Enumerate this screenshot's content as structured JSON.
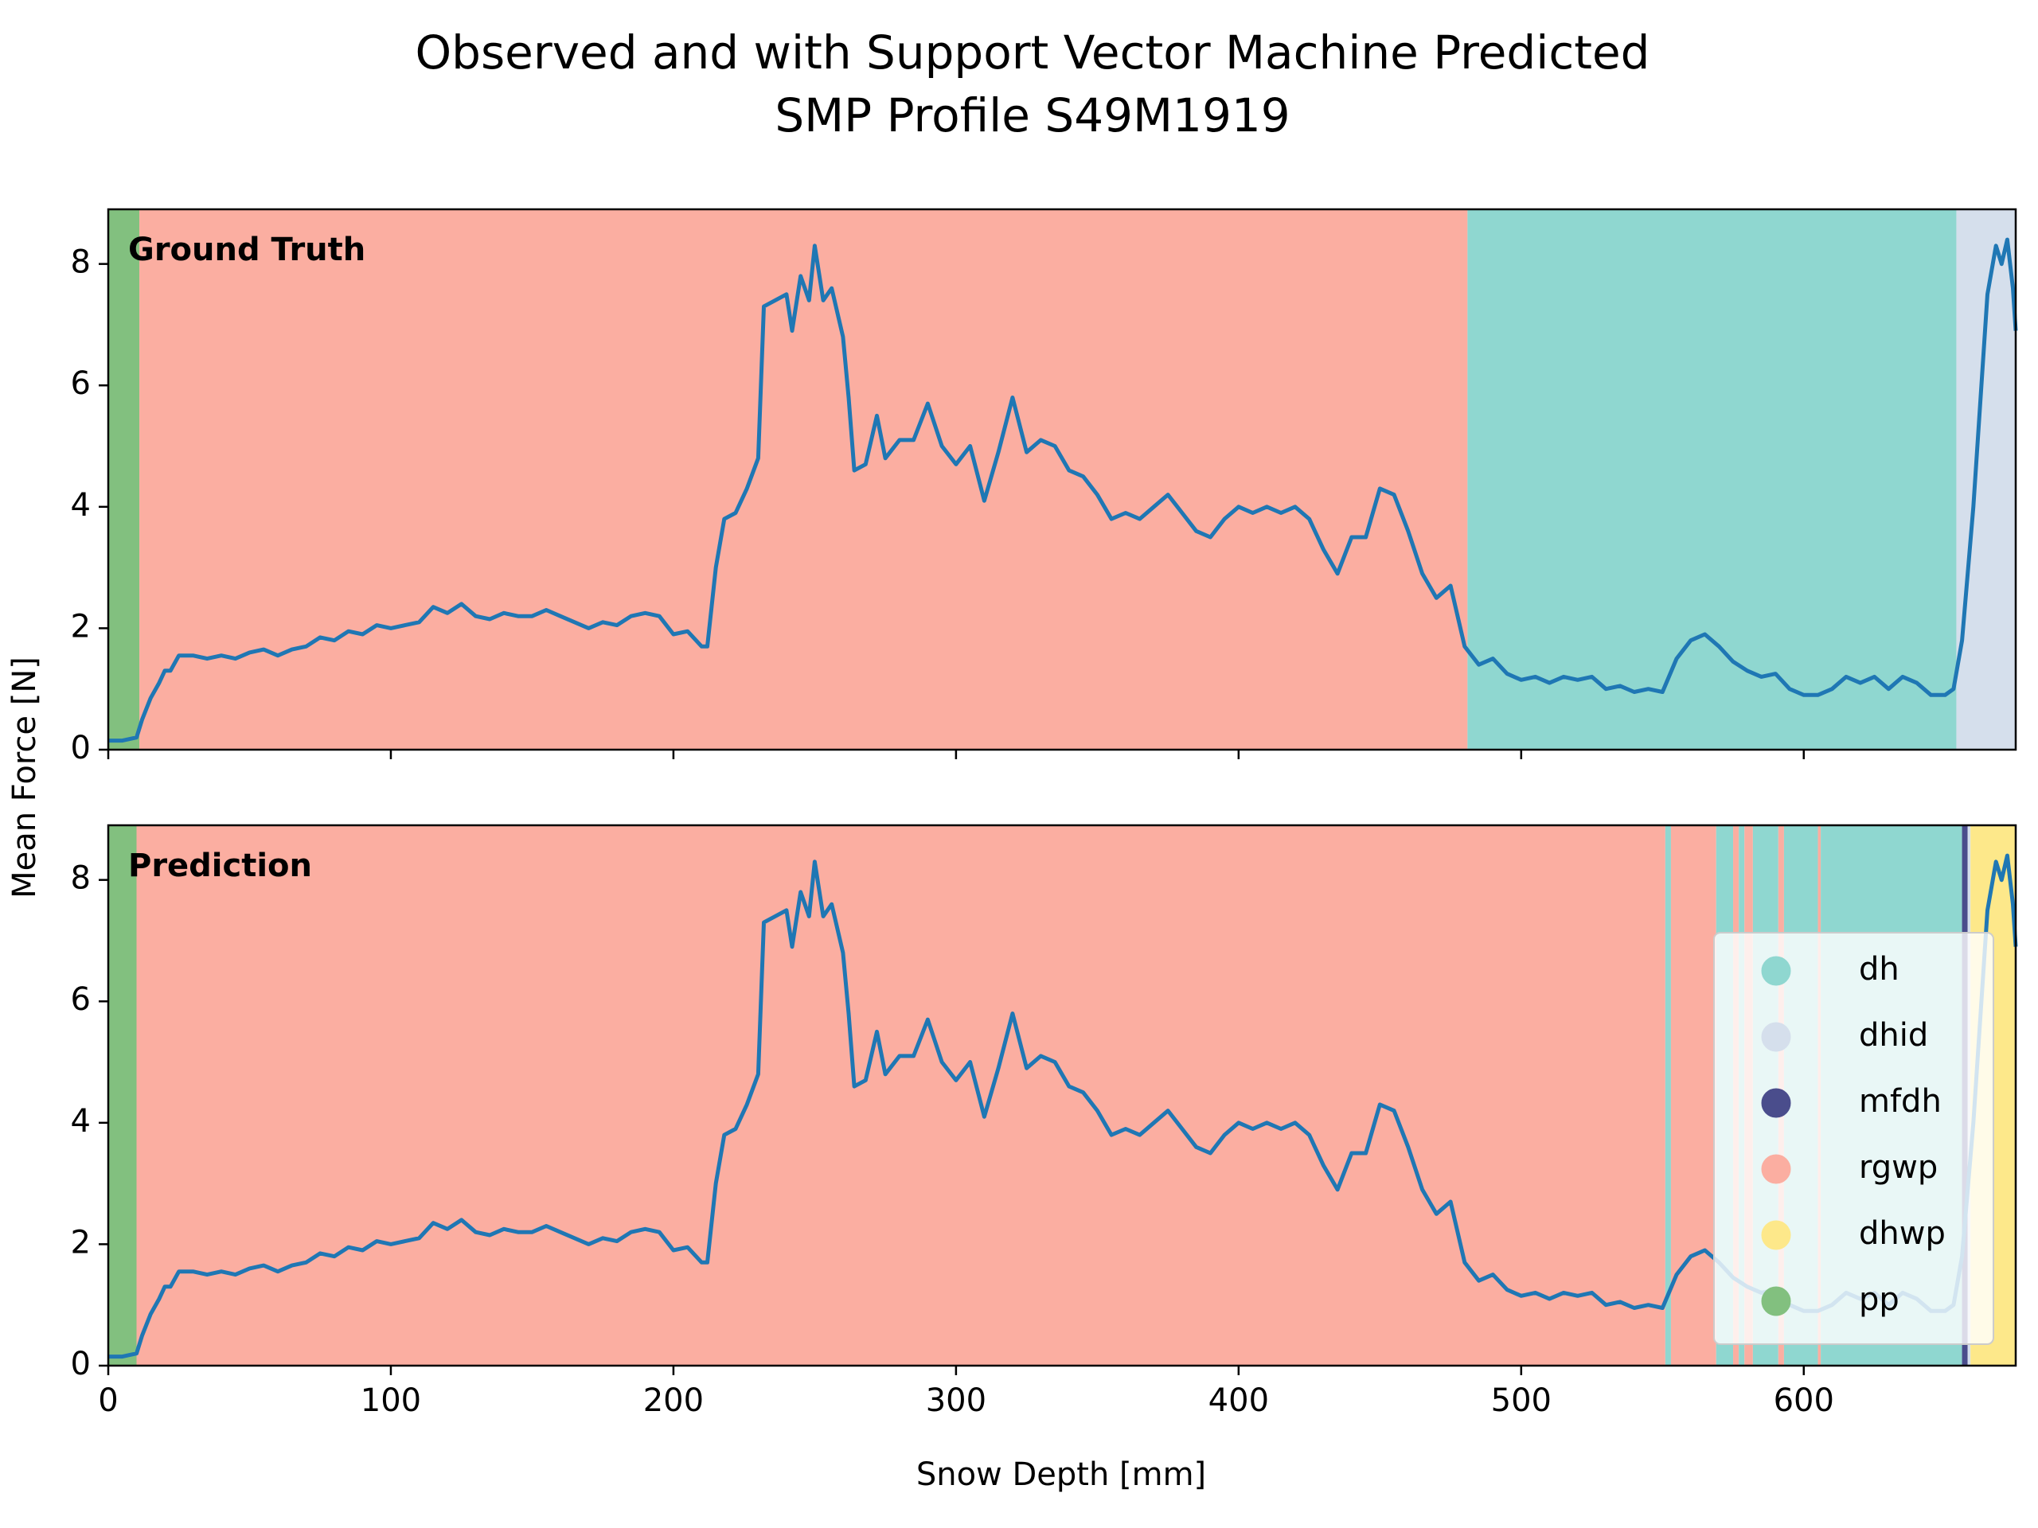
{
  "title": [
    "Observed and with Support Vector Machine Predicted",
    "SMP Profile S49M1919"
  ],
  "chart_data": {
    "type": "line",
    "xlabel": "Snow Depth [mm]",
    "ylabel": "Mean Force [N]",
    "xlim": [
      0,
      675
    ],
    "xticks": [
      0,
      100,
      200,
      300,
      400,
      500,
      600
    ],
    "ylim": [
      0,
      8.9
    ],
    "yticks": [
      0,
      2,
      4,
      6,
      8
    ],
    "color": "#1f77b4",
    "x": [
      0,
      5,
      10,
      12,
      15,
      18,
      20,
      22,
      25,
      30,
      35,
      40,
      45,
      50,
      55,
      60,
      65,
      70,
      75,
      80,
      85,
      90,
      95,
      100,
      105,
      110,
      115,
      120,
      125,
      130,
      135,
      140,
      145,
      150,
      155,
      160,
      165,
      170,
      175,
      180,
      185,
      190,
      195,
      200,
      205,
      210,
      212,
      215,
      218,
      222,
      226,
      230,
      232,
      236,
      240,
      242,
      245,
      248,
      250,
      253,
      256,
      260,
      262,
      264,
      268,
      272,
      275,
      280,
      285,
      290,
      295,
      300,
      305,
      310,
      315,
      320,
      325,
      330,
      335,
      340,
      345,
      350,
      355,
      360,
      365,
      370,
      375,
      380,
      385,
      390,
      395,
      400,
      405,
      410,
      415,
      420,
      425,
      430,
      435,
      440,
      445,
      450,
      455,
      460,
      465,
      470,
      475,
      480,
      485,
      490,
      495,
      500,
      505,
      510,
      515,
      520,
      525,
      530,
      535,
      540,
      545,
      550,
      555,
      560,
      565,
      570,
      575,
      580,
      585,
      590,
      595,
      600,
      605,
      610,
      615,
      620,
      625,
      630,
      635,
      640,
      645,
      650,
      653,
      656,
      660,
      665,
      668,
      670,
      672,
      674,
      675
    ],
    "values": [
      0.15,
      0.15,
      0.2,
      0.5,
      0.85,
      1.1,
      1.3,
      1.3,
      1.55,
      1.55,
      1.5,
      1.55,
      1.5,
      1.6,
      1.65,
      1.55,
      1.65,
      1.7,
      1.85,
      1.8,
      1.95,
      1.9,
      2.05,
      2.0,
      2.05,
      2.1,
      2.35,
      2.25,
      2.4,
      2.2,
      2.15,
      2.25,
      2.2,
      2.2,
      2.3,
      2.2,
      2.1,
      2.0,
      2.1,
      2.05,
      2.2,
      2.25,
      2.2,
      1.9,
      1.95,
      1.7,
      1.7,
      3.0,
      3.8,
      3.9,
      4.3,
      4.8,
      7.3,
      7.4,
      7.5,
      6.9,
      7.8,
      7.4,
      8.3,
      7.4,
      7.6,
      6.8,
      5.8,
      4.6,
      4.7,
      5.5,
      4.8,
      5.1,
      5.1,
      5.7,
      5.0,
      4.7,
      5.0,
      4.1,
      4.9,
      5.8,
      4.9,
      5.1,
      5.0,
      4.6,
      4.5,
      4.2,
      3.8,
      3.9,
      3.8,
      4.0,
      4.2,
      3.9,
      3.6,
      3.5,
      3.8,
      4.0,
      3.9,
      4.0,
      3.9,
      4.0,
      3.8,
      3.3,
      2.9,
      3.5,
      3.5,
      4.3,
      4.2,
      3.6,
      2.9,
      2.5,
      2.7,
      1.7,
      1.4,
      1.5,
      1.25,
      1.15,
      1.2,
      1.1,
      1.2,
      1.15,
      1.2,
      1.0,
      1.05,
      0.95,
      1.0,
      0.95,
      1.5,
      1.8,
      1.9,
      1.7,
      1.45,
      1.3,
      1.2,
      1.25,
      1.0,
      0.9,
      0.9,
      1.0,
      1.2,
      1.1,
      1.2,
      1.0,
      1.2,
      1.1,
      0.9,
      0.9,
      1.0,
      1.8,
      4.0,
      7.5,
      8.3,
      8.0,
      8.4,
      7.6,
      6.9
    ],
    "classes": [
      {
        "name": "dh",
        "color": "#8fd7d0"
      },
      {
        "name": "dhid",
        "color": "#d5dfec"
      },
      {
        "name": "mfdh",
        "color": "#4a4d8c"
      },
      {
        "name": "rgwp",
        "color": "#fbaea1"
      },
      {
        "name": "dhwp",
        "color": "#fde88a"
      },
      {
        "name": "pp",
        "color": "#82c07f"
      }
    ],
    "panels": [
      {
        "label": "Ground Truth",
        "segments": [
          {
            "from": 0,
            "to": 11,
            "class": 5
          },
          {
            "from": 11,
            "to": 481,
            "class": 3
          },
          {
            "from": 481,
            "to": 654,
            "class": 0
          },
          {
            "from": 654,
            "to": 675,
            "class": 1
          }
        ]
      },
      {
        "label": "Prediction",
        "segments": [
          {
            "from": 0,
            "to": 10,
            "class": 5
          },
          {
            "from": 10,
            "to": 551,
            "class": 3
          },
          {
            "from": 551,
            "to": 553,
            "class": 0
          },
          {
            "from": 553,
            "to": 569,
            "class": 3
          },
          {
            "from": 569,
            "to": 575,
            "class": 0
          },
          {
            "from": 575,
            "to": 577,
            "class": 3
          },
          {
            "from": 577,
            "to": 579,
            "class": 0
          },
          {
            "from": 579,
            "to": 582,
            "class": 3
          },
          {
            "from": 582,
            "to": 591,
            "class": 0
          },
          {
            "from": 591,
            "to": 593,
            "class": 3
          },
          {
            "from": 593,
            "to": 605,
            "class": 0
          },
          {
            "from": 605,
            "to": 606,
            "class": 3
          },
          {
            "from": 606,
            "to": 656,
            "class": 0
          },
          {
            "from": 656,
            "to": 658,
            "class": 2
          },
          {
            "from": 658,
            "to": 659,
            "class": 1
          },
          {
            "from": 659,
            "to": 675,
            "class": 4
          }
        ]
      }
    ]
  }
}
